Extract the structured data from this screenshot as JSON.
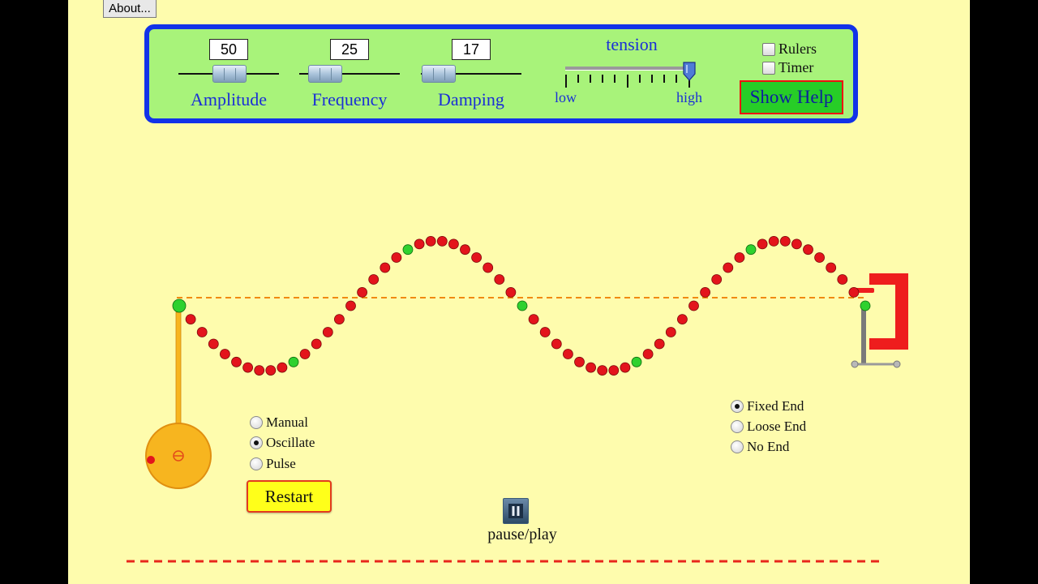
{
  "colors": {
    "stage_background": "#fefcad",
    "panel_border": "#1232e8",
    "panel_background": "#a8f37a",
    "label_blue": "#1a2fd6",
    "bead_red": "#e3141c",
    "bead_green": "#2ed12e",
    "clamp_red": "#ee1d1d",
    "wrench_orange": "#f7b51f",
    "reference_line": "#f08a12",
    "bottom_line": "#e8261c"
  },
  "about_button": {
    "label": "About..."
  },
  "controls": {
    "amplitude": {
      "label": "Amplitude",
      "value": "50",
      "icon": "slider-thumb"
    },
    "frequency": {
      "label": "Frequency",
      "value": "25",
      "icon": "slider-thumb"
    },
    "damping": {
      "label": "Damping",
      "value": "17",
      "icon": "slider-thumb"
    },
    "tension": {
      "label": "tension",
      "low_label": "low",
      "high_label": "high",
      "setting": "high"
    },
    "rulers_label": "Rulers",
    "timer_label": "Timer",
    "show_help_label": "Show Help"
  },
  "driver_modes": {
    "options": [
      "Manual",
      "Oscillate",
      "Pulse"
    ],
    "selected": "Oscillate"
  },
  "end_modes": {
    "options": [
      "Fixed End",
      "Loose End",
      "No End"
    ],
    "selected": "Fixed End"
  },
  "restart_label": "Restart",
  "pause_play": {
    "label": "pause/play",
    "icon": "pause-icon"
  },
  "wave": {
    "bead_count": 61,
    "green_every": 10,
    "cycles_shown": 2,
    "shape": "sine wave, fixed at right clamp, driven at left by oscillating wrench"
  }
}
